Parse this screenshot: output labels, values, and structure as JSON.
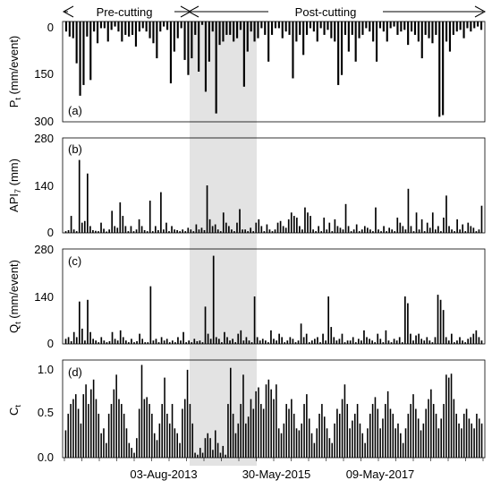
{
  "figure": {
    "period_pre": "Pre-cutting",
    "period_post": "Post-cutting",
    "date_ticks": [
      "03-Aug-2013",
      "30-May-2015",
      "09-May-2017"
    ]
  },
  "chart_data": [
    {
      "type": "bar",
      "panel_label": "(a)",
      "ylabel": "Pt (mm/event)",
      "ylabel_main": "P",
      "ylabel_sub": "t",
      "ylabel_rest": " (mm/event)",
      "inverted": true,
      "ylim": [
        0,
        300
      ],
      "yticks": [
        "0",
        "150",
        "300"
      ],
      "values": [
        30,
        45,
        50,
        125,
        222,
        190,
        45,
        175,
        30,
        65,
        20,
        20,
        60,
        25,
        15,
        30,
        60,
        40,
        45,
        40,
        75,
        30,
        20,
        30,
        50,
        65,
        110,
        30,
        15,
        25,
        185,
        90,
        50,
        20,
        115,
        160,
        110,
        40,
        150,
        10,
        210,
        120,
        30,
        275,
        70,
        60,
        40,
        40,
        60,
        50,
        25,
        195,
        90,
        30,
        60,
        50,
        20,
        40,
        120,
        40,
        20,
        20,
        50,
        30,
        40,
        170,
        60,
        40,
        100,
        40,
        20,
        30,
        60,
        20,
        40,
        25,
        50,
        60,
        190,
        160,
        40,
        90,
        40,
        120,
        50,
        40,
        20,
        30,
        60,
        120,
        20,
        30,
        60,
        20,
        15,
        40,
        30,
        25,
        70,
        30,
        40,
        60,
        110,
        40,
        50,
        65,
        40,
        285,
        280,
        60,
        90,
        40,
        30,
        25,
        50,
        20,
        30,
        20,
        15,
        25
      ]
    },
    {
      "type": "bar",
      "panel_label": "(b)",
      "ylabel": "API7 (mm)",
      "ylabel_main": "API",
      "ylabel_sub": "7",
      "ylabel_rest": " (mm)",
      "ylim": [
        0,
        280
      ],
      "yticks": [
        "0",
        "140",
        "280"
      ],
      "values": [
        5,
        8,
        50,
        10,
        5,
        215,
        30,
        35,
        175,
        20,
        8,
        6,
        5,
        30,
        12,
        4,
        10,
        65,
        20,
        15,
        90,
        50,
        20,
        5,
        20,
        5,
        10,
        40,
        20,
        8,
        5,
        95,
        5,
        20,
        8,
        120,
        10,
        30,
        5,
        20,
        10,
        8,
        5,
        10,
        5,
        15,
        10,
        5,
        25,
        10,
        15,
        8,
        140,
        40,
        20,
        25,
        10,
        5,
        60,
        30,
        20,
        10,
        5,
        30,
        70,
        10,
        10,
        5,
        15,
        5,
        30,
        40,
        20,
        5,
        25,
        10,
        5,
        10,
        30,
        35,
        20,
        15,
        40,
        60,
        50,
        45,
        20,
        10,
        75,
        60,
        50,
        10,
        5,
        20,
        5,
        45,
        10,
        30,
        5,
        40,
        20,
        15,
        10,
        85,
        20,
        5,
        10,
        25,
        5,
        10,
        20,
        15,
        10,
        5,
        75,
        10,
        5,
        20,
        5,
        15,
        10,
        5,
        45,
        30,
        20,
        10,
        130,
        20,
        5,
        60,
        10,
        40,
        5,
        30,
        15,
        60,
        10,
        20,
        5,
        45,
        110,
        20,
        10,
        5,
        40,
        10,
        25,
        5,
        30,
        20,
        15,
        5,
        10,
        80
      ]
    },
    {
      "type": "bar",
      "panel_label": "(c)",
      "ylabel": "Qt (mm/event)",
      "ylabel_main": "Q",
      "ylabel_sub": "t",
      "ylabel_rest": " (mm/event)",
      "ylim": [
        0,
        280
      ],
      "yticks": [
        "0",
        "140",
        "280"
      ],
      "values": [
        15,
        20,
        8,
        35,
        20,
        125,
        45,
        10,
        130,
        35,
        15,
        10,
        5,
        20,
        10,
        5,
        8,
        35,
        15,
        10,
        40,
        20,
        10,
        5,
        15,
        5,
        8,
        30,
        15,
        5,
        5,
        170,
        10,
        15,
        5,
        20,
        10,
        15,
        5,
        10,
        5,
        20,
        10,
        35,
        5,
        10,
        5,
        15,
        8,
        10,
        5,
        110,
        30,
        15,
        260,
        20,
        15,
        5,
        35,
        20,
        10,
        15,
        5,
        30,
        40,
        10,
        20,
        10,
        5,
        140,
        20,
        10,
        15,
        10,
        5,
        40,
        15,
        10,
        30,
        20,
        5,
        10,
        20,
        15,
        5,
        10,
        60,
        20,
        30,
        5,
        10,
        15,
        20,
        5,
        30,
        10,
        140,
        50,
        20,
        10,
        15,
        30,
        5,
        10,
        10,
        20,
        5,
        15,
        10,
        40,
        20,
        15,
        10,
        5,
        30,
        15,
        5,
        40,
        10,
        5,
        15,
        10,
        20,
        5,
        140,
        120,
        30,
        10,
        25,
        30,
        15,
        10,
        20,
        10,
        5,
        20,
        145,
        130,
        100,
        20,
        10,
        30,
        5,
        10,
        20,
        10,
        5,
        15,
        20,
        30,
        40,
        20,
        10
      ]
    },
    {
      "type": "bar",
      "panel_label": "(d)",
      "ylabel": "Ct",
      "ylabel_main": "C",
      "ylabel_sub": "t",
      "ylabel_rest": "",
      "ylim": [
        0,
        1.0
      ],
      "yticks": [
        "0.0",
        "0.5",
        "1.0"
      ],
      "values": [
        0.28,
        0.45,
        0.55,
        0.6,
        0.65,
        0.5,
        0.35,
        0.65,
        0.75,
        0.55,
        0.7,
        0.8,
        0.6,
        0.45,
        0.25,
        0.3,
        0.15,
        0.45,
        0.55,
        0.7,
        0.85,
        0.6,
        0.55,
        0.45,
        0.3,
        0.15,
        0.1,
        0.05,
        0.2,
        0.5,
        0.95,
        0.6,
        0.62,
        0.55,
        0.45,
        0.25,
        0.18,
        0.35,
        0.55,
        0.82,
        0.45,
        0.35,
        0.55,
        0.3,
        0.25,
        0.15,
        0.5,
        0.6,
        0.9,
        0.55,
        0.35,
        0.05,
        0.03,
        0.1,
        0.05,
        0.2,
        0.25,
        0.2,
        0.08,
        0.28,
        0.15,
        0.05,
        0.12,
        0.03,
        0.55,
        0.92,
        0.45,
        0.25,
        0.35,
        0.55,
        0.85,
        0.35,
        0.42,
        0.6,
        0.5,
        0.68,
        0.72,
        0.55,
        0.5,
        0.75,
        0.8,
        0.7,
        0.6,
        0.75,
        0.3,
        0.25,
        0.35,
        0.55,
        0.5,
        0.6,
        0.45,
        0.3,
        0.28,
        0.35,
        0.55,
        0.65,
        0.4,
        0.25,
        0.15,
        0.3,
        0.45,
        0.55,
        0.42,
        0.3,
        0.2,
        0.15,
        0.35,
        0.5,
        0.45,
        0.6,
        0.75,
        0.55,
        0.3,
        0.38,
        0.45,
        0.55,
        0.35,
        0.25,
        0.15,
        0.3,
        0.45,
        0.55,
        0.62,
        0.5,
        0.3,
        0.4,
        0.55,
        0.68,
        0.5,
        0.45,
        0.3,
        0.35,
        0.25,
        0.15,
        0.3,
        0.45,
        0.55,
        0.65,
        0.5,
        0.4,
        0.28,
        0.35,
        0.5,
        0.6,
        0.7,
        0.55,
        0.45,
        0.3,
        0.4,
        0.55,
        0.85,
        0.82,
        0.86,
        0.6,
        0.45,
        0.35,
        0.3,
        0.45,
        0.5,
        0.4,
        0.35,
        0.3,
        0.45,
        0.4,
        0.35
      ]
    }
  ]
}
